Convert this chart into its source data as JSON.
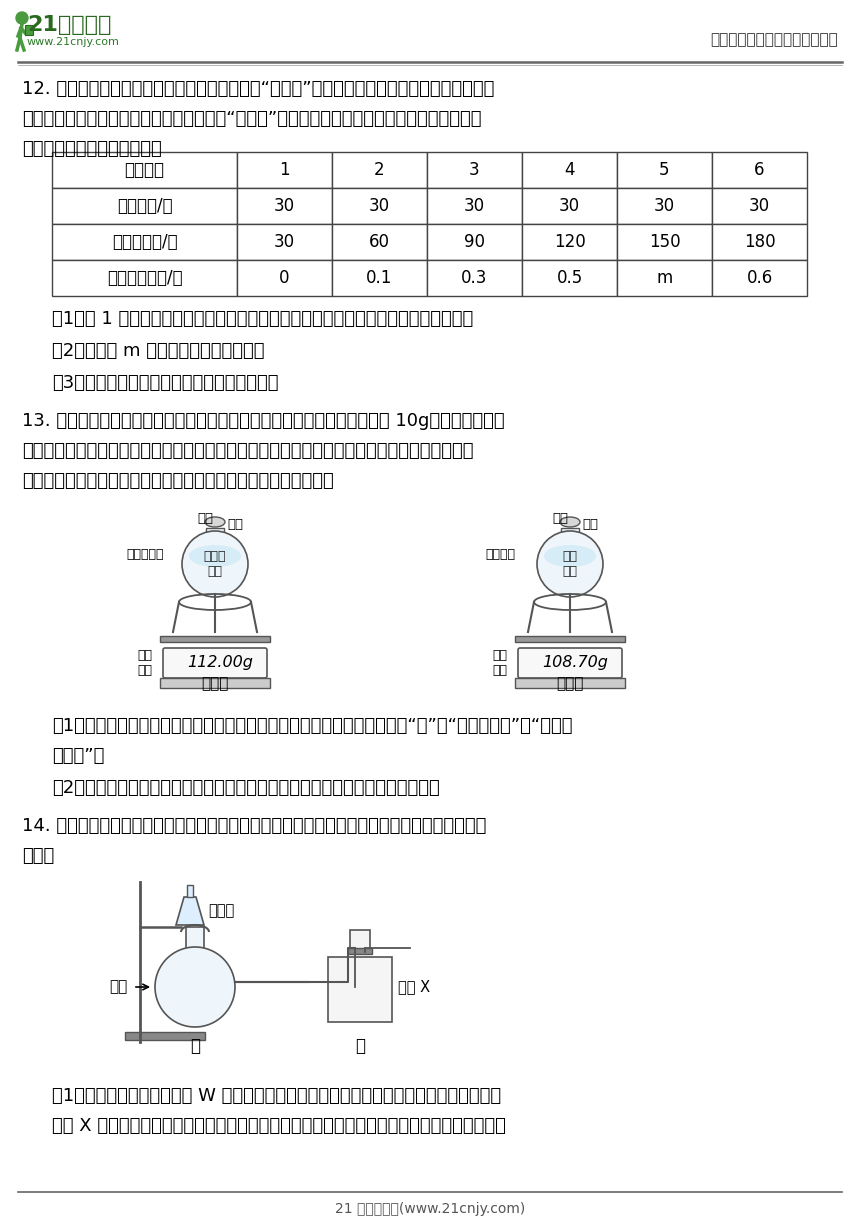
{
  "bg_color": "#ffffff",
  "header_text": "中小学教育资源及组卷应用平台",
  "footer_text": "21 世纪教育网(www.21cnjy.com)",
  "q12_para1": "12. 为防止食品腐败，某些食品包装袋内常放入“除氧剂”，其主要成分是铁粉，其他物质不与酸",
  "q12_para2": "反应。某兴小组在实验室发现了一包破损的“除氧剂”，他们取六份样品，分别加入不同质量的稀",
  "q12_para3": "硫酸。测得部分数据如下表：",
  "table_headers": [
    "实验次数",
    "1",
    "2",
    "3",
    "4",
    "5",
    "6"
  ],
  "table_row1": [
    "样品质量/克",
    "30",
    "30",
    "30",
    "30",
    "30",
    "30"
  ],
  "table_row2": [
    "稀硫酸质量/克",
    "30",
    "60",
    "90",
    "120",
    "150",
    "180"
  ],
  "table_row3": [
    "产生气体质量/克",
    "0",
    "0.1",
    "0.3",
    "0.5",
    "m",
    "0.6"
  ],
  "q12_sub1": "（1）第 1 次实验没有气体产生，其理由是：＿＿＿＿＿＿＿＿＿＿＿＿＿＿＿＿＿。",
  "q12_sub2": "（2）表格中 m 的数值为＿＿＿＿＿＿。",
  "q12_sub3": "（3）请计算该实验中稀硫酸的溶质质量分数。",
  "q13_para1": "13. 为测定石灰岐中碳酸钙的质量分数，采取以下的方法：取该石灰岐样品 10g，加入足量的稀",
  "q13_para2": "盐酸，充分地进行反应。测量反应前后的电子天平示数、数据如图（已知石灰岐样品中含有的二",
  "q13_para3": "氧化硞等杂质不溶于水，也不与稀盐酸反应）。请回答下列问题：",
  "q13_sub1": "（1）石灰岐样品中的二氧化硞属于＿＿＿＿＿＿＿＿＿＿＿＿＿＿。（填“盐”、“金属氧化物”或“非金属",
  "q13_sub1b": "氧化物”）",
  "q13_sub2": "（2）根据实验室测量的数据、电子天平示数，求出石灰岐样品中碳酸钙的质量。",
  "q14_para1": "14. 工业纯碱中含少量氯化钓。兴趣小组分别采用不同的方法测定工业纯碱样品中碳酸钓的质量",
  "q14_para2": "分数。",
  "q14_sub1": "（1）方法一：差量法。称取 W 克样品与足量的稀盐酸充分反应，生成的二氧化碳通过装有",
  "q14_sub1b": "试剂 X 的乙装置，并利用测量乙装置增加的质量，求得样品中碳酸钓的质量分数。该方法中试"
}
